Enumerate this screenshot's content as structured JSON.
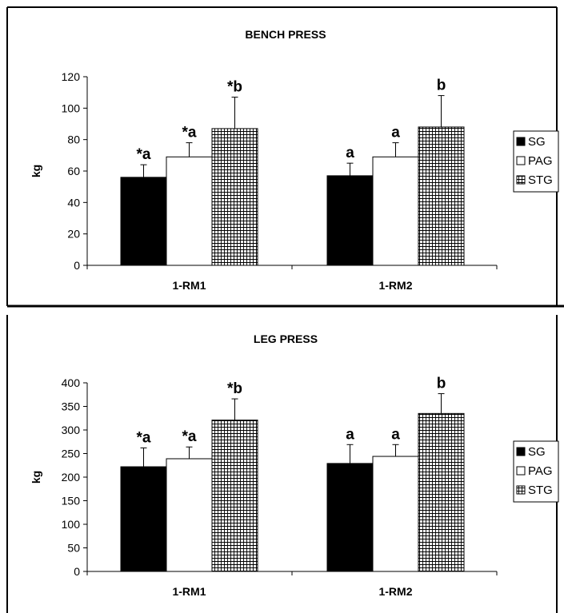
{
  "chart_data": [
    {
      "type": "bar",
      "title": "BENCH PRESS",
      "xlabel": "",
      "ylabel": "kg",
      "categories": [
        "1-RM1",
        "1-RM2"
      ],
      "ylim": [
        0,
        120
      ],
      "yticks": [
        0,
        20,
        40,
        60,
        80,
        100,
        120
      ],
      "series": [
        {
          "name": "SG",
          "values": [
            56,
            57
          ],
          "errors": [
            8,
            8
          ],
          "annotations": [
            "*a",
            "a"
          ],
          "color": "#000000",
          "pattern": "solid"
        },
        {
          "name": "PAG",
          "values": [
            69,
            69
          ],
          "errors": [
            9,
            9
          ],
          "annotations": [
            "*a",
            "a"
          ],
          "color": "#ffffff",
          "pattern": "hollow"
        },
        {
          "name": "STG",
          "values": [
            87,
            88
          ],
          "errors": [
            20,
            20
          ],
          "annotations": [
            "*b",
            "b"
          ],
          "color": "#ffffff",
          "pattern": "grid"
        }
      ],
      "legend_position": "right",
      "grid": false
    },
    {
      "type": "bar",
      "title": "LEG PRESS",
      "xlabel": "",
      "ylabel": "kg",
      "categories": [
        "1-RM1",
        "1-RM2"
      ],
      "ylim": [
        0,
        400
      ],
      "yticks": [
        0,
        50,
        100,
        150,
        200,
        250,
        300,
        350,
        400
      ],
      "series": [
        {
          "name": "SG",
          "values": [
            222,
            229
          ],
          "errors": [
            40,
            40
          ],
          "annotations": [
            "*a",
            "a"
          ],
          "color": "#000000",
          "pattern": "solid"
        },
        {
          "name": "PAG",
          "values": [
            239,
            244
          ],
          "errors": [
            25,
            25
          ],
          "annotations": [
            "*a",
            "a"
          ],
          "color": "#ffffff",
          "pattern": "hollow"
        },
        {
          "name": "STG",
          "values": [
            321,
            335
          ],
          "errors": [
            45,
            42
          ],
          "annotations": [
            "*b",
            "b"
          ],
          "color": "#ffffff",
          "pattern": "grid"
        }
      ],
      "legend_position": "right",
      "grid": false
    }
  ]
}
